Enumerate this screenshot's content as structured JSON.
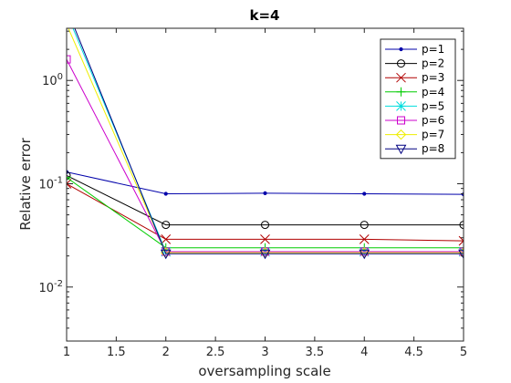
{
  "chart_data": {
    "type": "line",
    "title": "k=4",
    "xlabel": "oversampling scale",
    "ylabel": "Relative error",
    "x": [
      1,
      2,
      3,
      4,
      5
    ],
    "xlim": [
      1,
      5
    ],
    "ylim": [
      0.003,
      3.2
    ],
    "yscale": "log",
    "x_ticks": [
      1,
      1.5,
      2,
      2.5,
      3,
      3.5,
      4,
      4.5,
      5
    ],
    "x_tick_labels": [
      "1",
      "1.5",
      "2",
      "2.5",
      "3",
      "3.5",
      "4",
      "4.5",
      "5"
    ],
    "y_ticks": [
      0.01,
      0.1,
      1
    ],
    "y_tick_labels": [
      {
        "base": "10",
        "exp": "-2"
      },
      {
        "base": "10",
        "exp": "-1"
      },
      {
        "base": "10",
        "exp": "0"
      }
    ],
    "grid": false,
    "legend_position": "top-right",
    "series": [
      {
        "name": "p=1",
        "color": "#0000aa",
        "marker": "point",
        "values": [
          0.13,
          0.08,
          0.081,
          0.08,
          0.079
        ]
      },
      {
        "name": "p=2",
        "color": "#000000",
        "marker": "circle",
        "values": [
          0.12,
          0.04,
          0.04,
          0.04,
          0.04
        ]
      },
      {
        "name": "p=3",
        "color": "#b00000",
        "marker": "x",
        "values": [
          0.1,
          0.029,
          0.029,
          0.029,
          0.028
        ]
      },
      {
        "name": "p=4",
        "color": "#00cc00",
        "marker": "plus",
        "values": [
          0.115,
          0.024,
          0.024,
          0.024,
          0.024
        ]
      },
      {
        "name": "p=5",
        "color": "#00dddd",
        "marker": "star",
        "values": [
          4.5,
          0.022,
          0.022,
          0.022,
          0.022
        ]
      },
      {
        "name": "p=6",
        "color": "#cc00cc",
        "marker": "square",
        "values": [
          1.6,
          0.022,
          0.022,
          0.022,
          0.022
        ]
      },
      {
        "name": "p=7",
        "color": "#eeee00",
        "marker": "diamond",
        "values": [
          3.5,
          0.0215,
          0.0215,
          0.0215,
          0.0215
        ]
      },
      {
        "name": "p=8",
        "color": "#000080",
        "marker": "triangle",
        "values": [
          5.0,
          0.021,
          0.021,
          0.021,
          0.021
        ]
      }
    ]
  }
}
